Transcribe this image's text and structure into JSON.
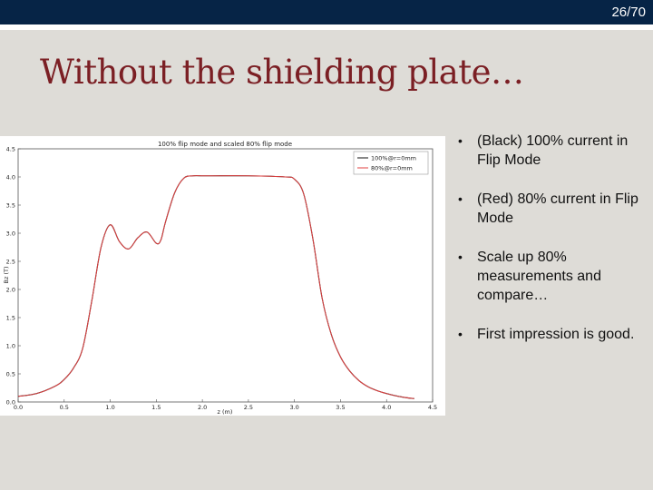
{
  "header": {
    "page_number": "26/70"
  },
  "slide": {
    "title": "Without the shielding plate…"
  },
  "bullets": [
    "(Black) 100% current in Flip Mode",
    "(Red) 80% current in Flip Mode",
    "Scale up 80% measurements and compare…",
    "First impression is good."
  ],
  "colors": {
    "header_bar": "#062446",
    "title": "#7b1f24",
    "series_black": "#111111",
    "series_red": "#e04040"
  },
  "chart_data": {
    "type": "line",
    "title": "100% flip mode and scaled 80% flip mode",
    "xlabel": "z (m)",
    "ylabel": "Bz (T)",
    "xlim": [
      0.0,
      4.5
    ],
    "ylim": [
      0.0,
      4.5
    ],
    "xticks": [
      "0.0",
      "0.5",
      "1.0",
      "1.5",
      "2.0",
      "2.5",
      "3.0",
      "3.5",
      "4.0",
      "4.5"
    ],
    "yticks": [
      "0.0",
      "0.5",
      "1.0",
      "1.5",
      "2.0",
      "2.5",
      "3.0",
      "3.5",
      "4.0",
      "4.5"
    ],
    "legend_position": "top-right",
    "grid": false,
    "series": [
      {
        "name": "100%@r=0mm",
        "color": "#111111",
        "x": [
          0.0,
          0.2,
          0.4,
          0.5,
          0.6,
          0.7,
          0.8,
          0.9,
          1.0,
          1.1,
          1.2,
          1.3,
          1.4,
          1.5,
          1.55,
          1.6,
          1.7,
          1.8,
          1.9,
          2.0,
          2.1,
          2.5,
          2.9,
          3.0,
          3.1,
          3.2,
          3.3,
          3.4,
          3.5,
          3.6,
          3.7,
          3.8,
          3.9,
          4.0,
          4.1,
          4.2,
          4.3
        ],
        "y": [
          0.1,
          0.15,
          0.28,
          0.4,
          0.6,
          0.95,
          1.8,
          2.75,
          3.15,
          2.85,
          2.72,
          2.92,
          3.02,
          2.82,
          2.88,
          3.2,
          3.72,
          3.98,
          4.02,
          4.02,
          4.02,
          4.02,
          4.0,
          3.96,
          3.7,
          2.9,
          1.85,
          1.2,
          0.8,
          0.55,
          0.38,
          0.27,
          0.2,
          0.15,
          0.11,
          0.08,
          0.06
        ]
      },
      {
        "name": "80%@r=0mm",
        "color": "#e04040",
        "x": [
          0.0,
          0.2,
          0.4,
          0.5,
          0.6,
          0.7,
          0.8,
          0.9,
          1.0,
          1.1,
          1.2,
          1.3,
          1.4,
          1.5,
          1.55,
          1.6,
          1.7,
          1.8,
          1.9,
          2.0,
          2.1,
          2.5,
          2.9,
          3.0,
          3.1,
          3.2,
          3.3,
          3.4,
          3.5,
          3.6,
          3.7,
          3.8,
          3.9,
          4.0,
          4.1,
          4.2,
          4.3
        ],
        "y": [
          0.1,
          0.15,
          0.28,
          0.4,
          0.6,
          0.95,
          1.8,
          2.75,
          3.15,
          2.85,
          2.72,
          2.92,
          3.02,
          2.82,
          2.88,
          3.2,
          3.72,
          3.98,
          4.02,
          4.02,
          4.02,
          4.02,
          4.0,
          3.96,
          3.7,
          2.9,
          1.85,
          1.2,
          0.8,
          0.55,
          0.38,
          0.27,
          0.2,
          0.15,
          0.11,
          0.08,
          0.06
        ]
      }
    ]
  }
}
